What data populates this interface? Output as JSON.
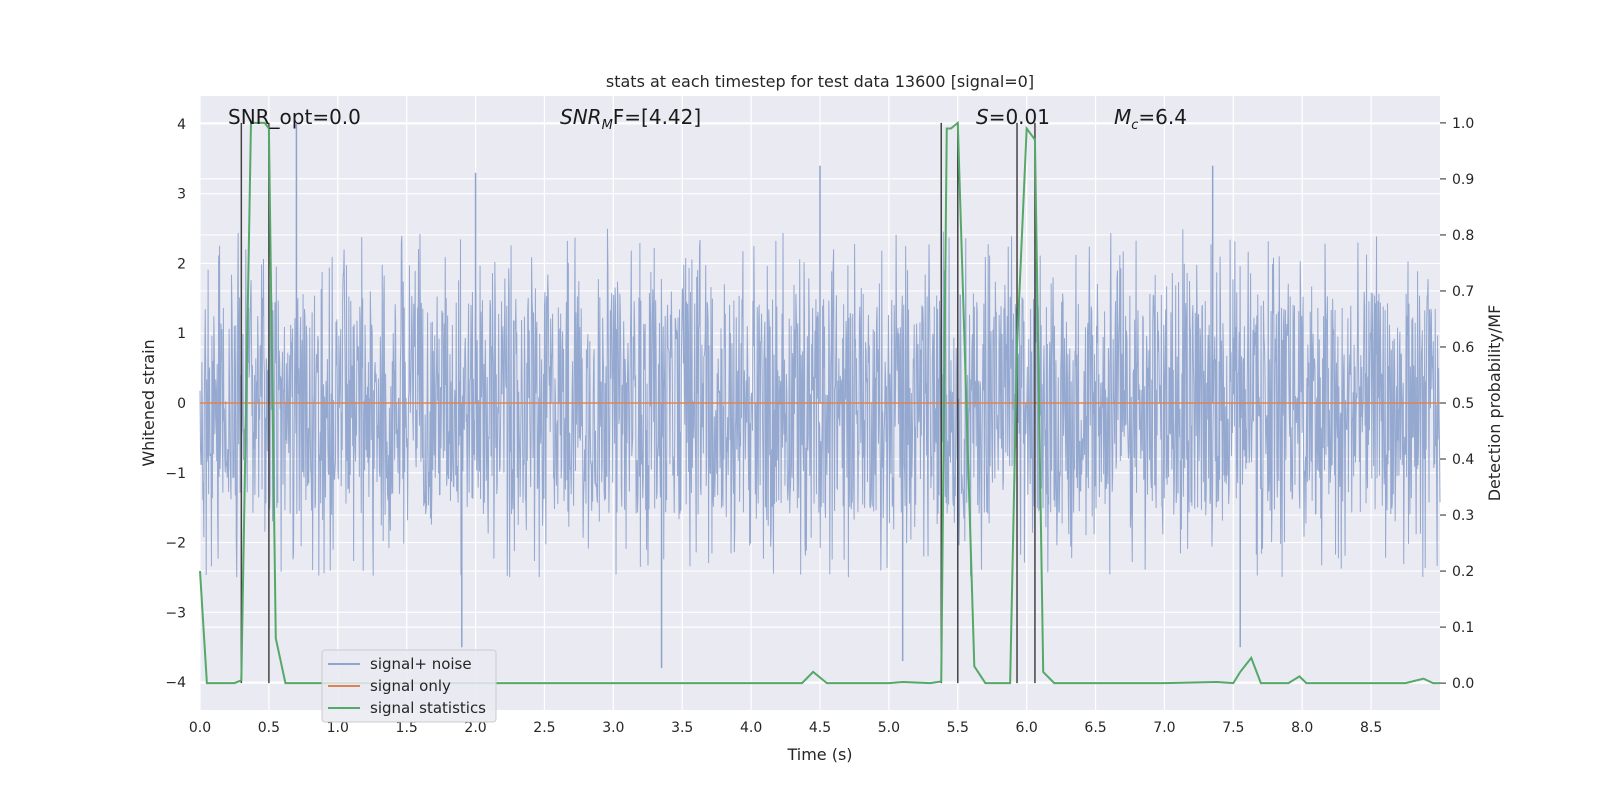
{
  "chart_data": {
    "type": "line",
    "title": "stats at each timestep for test data 13600 [signal=0]",
    "xlabel": "Time (s)",
    "ylabel": "Whitened strain",
    "y2label": "Detection probability/MF",
    "xlim": [
      0,
      9
    ],
    "ylim": [
      -4.4,
      4.4
    ],
    "y2lim": [
      -0.048,
      1.048
    ],
    "x_ticks": [
      0.0,
      0.5,
      1.0,
      1.5,
      2.0,
      2.5,
      3.0,
      3.5,
      4.0,
      4.5,
      5.0,
      5.5,
      6.0,
      6.5,
      7.0,
      7.5,
      8.0,
      8.5
    ],
    "x_tick_labels": [
      "0.0",
      "0.5",
      "1.0",
      "1.5",
      "2.0",
      "2.5",
      "3.0",
      "3.5",
      "4.0",
      "4.5",
      "5.0",
      "5.5",
      "6.0",
      "6.5",
      "7.0",
      "7.5",
      "8.0",
      "8.5"
    ],
    "y_ticks": [
      -4,
      -3,
      -2,
      -1,
      0,
      1,
      2,
      3,
      4
    ],
    "y_tick_labels": [
      "−4",
      "−3",
      "−2",
      "−1",
      "0",
      "1",
      "2",
      "3",
      "4"
    ],
    "y2_ticks": [
      0.0,
      0.1,
      0.2,
      0.3,
      0.4,
      0.5,
      0.6,
      0.7,
      0.8,
      0.9,
      1.0
    ],
    "y2_tick_labels": [
      "0.0",
      "0.1",
      "0.2",
      "0.3",
      "0.4",
      "0.5",
      "0.6",
      "0.7",
      "0.8",
      "0.9",
      "1.0"
    ],
    "grid": true,
    "legend_position": "lower-left",
    "annotations": {
      "snr_opt": "SNR_opt=0.0",
      "snr_mf_italic": "SNR",
      "snr_mf_sub": "M",
      "snr_mf_rest": "F=[4.42]",
      "s_italic": "S",
      "s_rest": "=0.01",
      "mc_italic": "M",
      "mc_sub": "c",
      "mc_rest": "=6.4"
    },
    "vertical_lines_x": [
      0.3,
      0.5,
      5.38,
      5.5,
      5.93,
      6.06
    ],
    "series": [
      {
        "name": "signal+ noise",
        "color": "#8fa4cd",
        "axis": "left",
        "kind": "noise",
        "typical_amplitude": 1.6,
        "extreme_points": [
          {
            "x": 0.7,
            "y": 4.0
          },
          {
            "x": 2.0,
            "y": 3.3
          },
          {
            "x": 4.5,
            "y": 3.4
          },
          {
            "x": 7.35,
            "y": 3.4
          },
          {
            "x": 3.35,
            "y": -3.8
          },
          {
            "x": 5.1,
            "y": -3.7
          },
          {
            "x": 7.55,
            "y": -3.5
          },
          {
            "x": 1.9,
            "y": -3.5
          }
        ]
      },
      {
        "name": "signal only",
        "color": "#dd8452",
        "axis": "left",
        "x": [
          0,
          9
        ],
        "y": [
          0,
          0
        ]
      },
      {
        "name": "signal statistics",
        "color": "#55a868",
        "axis": "right",
        "x": [
          0.0,
          0.05,
          0.15,
          0.25,
          0.3,
          0.37,
          0.42,
          0.47,
          0.5,
          0.55,
          0.62,
          0.7,
          1.0,
          2.0,
          3.0,
          4.0,
          4.37,
          4.45,
          4.55,
          5.0,
          5.1,
          5.3,
          5.38,
          5.42,
          5.45,
          5.5,
          5.55,
          5.62,
          5.7,
          5.8,
          5.88,
          5.93,
          6.0,
          6.06,
          6.12,
          6.2,
          6.5,
          7.0,
          7.38,
          7.5,
          7.55,
          7.63,
          7.7,
          7.9,
          7.98,
          8.03,
          8.1,
          8.5,
          8.75,
          8.88,
          8.95,
          9.0
        ],
        "y": [
          0.2,
          0.0,
          0.0,
          0.0,
          0.005,
          1.0,
          1.0,
          1.0,
          0.99,
          0.08,
          0.0,
          0.0,
          0.0,
          0.0,
          0.0,
          0.0,
          0.0,
          0.02,
          0.0,
          0.0,
          0.002,
          0.0,
          0.003,
          0.99,
          0.99,
          1.0,
          0.6,
          0.03,
          0.0,
          0.0,
          0.0,
          0.6,
          0.99,
          0.97,
          0.02,
          0.0,
          0.0,
          0.0,
          0.002,
          0.0,
          0.02,
          0.045,
          0.0,
          0.0,
          0.012,
          0.0,
          0.0,
          0.0,
          0.0,
          0.008,
          0.0,
          0.0
        ]
      }
    ]
  }
}
